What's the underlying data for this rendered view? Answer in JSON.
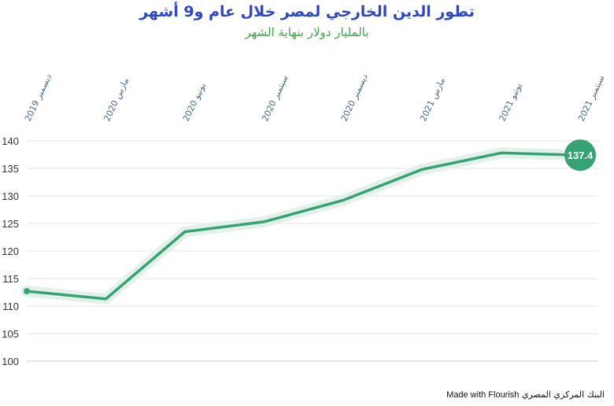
{
  "chart_data": {
    "type": "line",
    "title": "تطور الدين الخارجي لمصر خلال عام و9 أشهر",
    "subtitle": "بالمليار دولار بنهاية الشهر",
    "categories": [
      "ديسمبر 2019",
      "مارس 2020",
      "يونيو 2020",
      "سبتمبر 2020",
      "ديسمبر 2020",
      "مارس 2021",
      "يونيو 2021",
      "سبتمبر 2021"
    ],
    "series": [
      {
        "values": [
          112.7,
          111.3,
          123.5,
          125.3,
          129.2,
          134.8,
          137.8,
          137.4
        ]
      }
    ],
    "end_label": "137.4",
    "ylim": [
      100,
      140
    ],
    "yticks": [
      100,
      105,
      110,
      115,
      120,
      125,
      130,
      135,
      140
    ],
    "grid": true,
    "colors": {
      "line": "#36a374",
      "band": "#e3f1ea",
      "title": "#2b46c8",
      "subtitle": "#45a249",
      "axis_text": "#4a6a86"
    }
  },
  "footer": {
    "made_with": "Made with Flourish",
    "source": "البنك المركزي المصري"
  }
}
